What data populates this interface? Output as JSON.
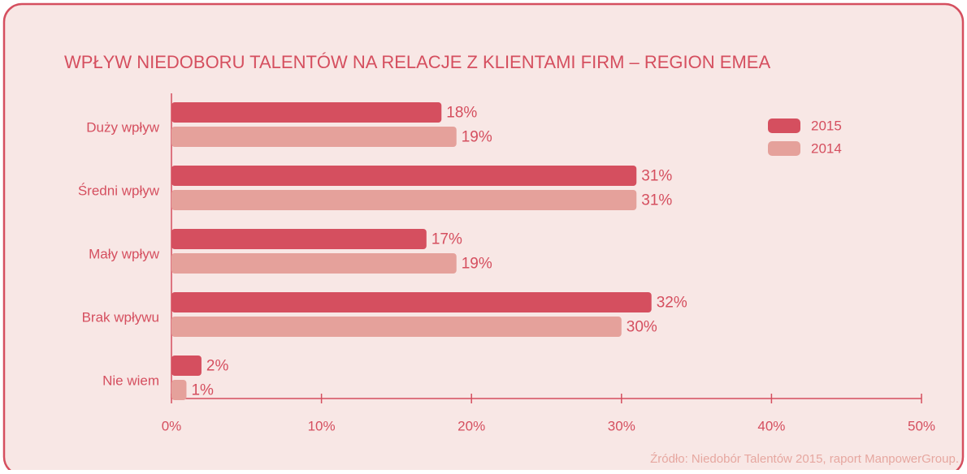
{
  "chart_data": {
    "type": "hbar",
    "title": "WPŁYW NIEDOBORU TALENTÓW NA RELACJE Z KLIENTAMI FIRM – REGION EMEA",
    "categories": [
      "Duży wpływ",
      "Średni wpływ",
      "Mały wpływ",
      "Brak wpływu",
      "Nie wiem"
    ],
    "series": [
      {
        "name": "2015",
        "color": "#d54f5f",
        "values": [
          18,
          31,
          17,
          32,
          2
        ],
        "value_labels": [
          "18%",
          "31%",
          "17%",
          "32%",
          "2%"
        ]
      },
      {
        "name": "2014",
        "color": "#e5a19b",
        "values": [
          19,
          31,
          19,
          30,
          1
        ],
        "value_labels": [
          "19%",
          "31%",
          "19%",
          "30%",
          "1%"
        ]
      }
    ],
    "xlim": [
      0,
      50
    ],
    "xticks": [
      {
        "value": 0,
        "label": "0%"
      },
      {
        "value": 10,
        "label": "10%"
      },
      {
        "value": 20,
        "label": "20%"
      },
      {
        "value": 30,
        "label": "30%"
      },
      {
        "value": 40,
        "label": "40%"
      },
      {
        "value": 50,
        "label": "50%"
      }
    ],
    "legend": "top-right",
    "source": "Źródło: Niedobór Talentów 2015, raport ManpowerGroup."
  }
}
